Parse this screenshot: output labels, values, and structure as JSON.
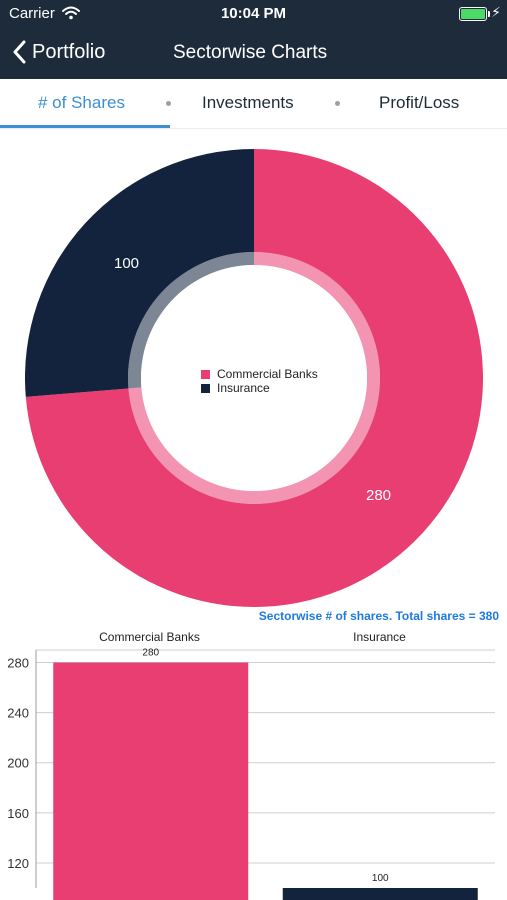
{
  "status_bar": {
    "carrier": "Carrier",
    "time": "10:04 PM"
  },
  "nav": {
    "back_label": "Portfolio",
    "title": "Sectorwise Charts"
  },
  "tabs": [
    {
      "label": "# of Shares",
      "active": true
    },
    {
      "label": "Investments",
      "active": false
    },
    {
      "label": "Profit/Loss",
      "active": false
    }
  ],
  "colors": {
    "navbar": "#1d2b3a",
    "accent": "#3b8fd3",
    "commercial_banks": "#e93e72",
    "insurance": "#13233d",
    "caption": "#1f7ae0"
  },
  "caption": "Sectorwise # of shares. Total shares = 380",
  "chart_data": [
    {
      "type": "pie",
      "style": "donut",
      "legend_placement": "center",
      "slices": [
        {
          "name": "Commercial Banks",
          "value": 280,
          "label": "280"
        },
        {
          "name": "Insurance",
          "value": 100,
          "label": "100"
        }
      ]
    },
    {
      "type": "bar",
      "categories": [
        "Commercial Banks",
        "Insurance"
      ],
      "values": [
        280,
        100
      ],
      "value_labels": [
        "280",
        "100"
      ],
      "yticks": [
        "120",
        "160",
        "200",
        "240",
        "280"
      ],
      "ylim": [
        100,
        290
      ],
      "grid": true
    }
  ]
}
